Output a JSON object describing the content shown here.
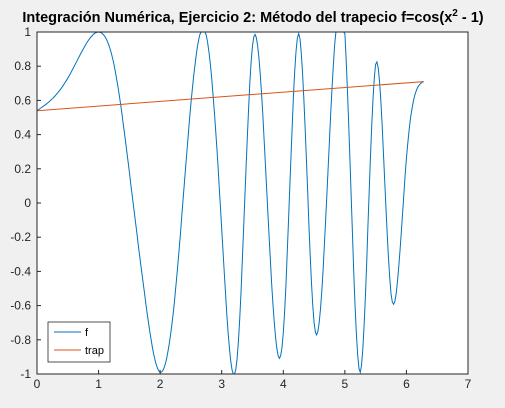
{
  "chart_data": {
    "type": "line",
    "title_main": "Integración Numérica, Ejercicio 2: Método del trapecio  f=cos(x",
    "title_sup": "2",
    "title_tail": " - 1)",
    "xlim": [
      0,
      7
    ],
    "ylim": [
      -1,
      1
    ],
    "x_ticks": [
      "0",
      "1",
      "2",
      "3",
      "4",
      "5",
      "6",
      "7"
    ],
    "y_ticks": [
      "-1",
      "-0.8",
      "-0.6",
      "-0.4",
      "-0.2",
      "0",
      "0.2",
      "0.4",
      "0.6",
      "0.8",
      "1"
    ],
    "grid": false,
    "legend_position": "bottom-left",
    "series": [
      {
        "name": "f",
        "color": "#0072BD",
        "x": [
          0,
          0.25,
          0.5,
          0.75,
          1.0,
          1.25,
          1.5,
          1.75,
          2.0,
          2.25,
          2.5,
          2.75,
          3.0,
          3.25,
          3.5,
          3.75,
          4.0,
          4.25,
          4.5,
          4.75,
          5.0,
          5.25,
          5.5,
          5.75,
          6.0,
          6.28
        ],
        "y": [
          0.54,
          0.61,
          0.73,
          0.9,
          1.0,
          0.81,
          0.18,
          -0.54,
          -0.99,
          -0.51,
          0.58,
          0.98,
          -0.15,
          -0.91,
          0.92,
          -0.06,
          -0.76,
          0.99,
          -0.7,
          0.37,
          0.99,
          -0.99,
          0.81,
          -0.53,
          0.26,
          0.71
        ]
      },
      {
        "name": "trap",
        "color": "#D95319",
        "x": [
          0,
          6.28
        ],
        "y": [
          0.54,
          0.71
        ]
      }
    ]
  }
}
